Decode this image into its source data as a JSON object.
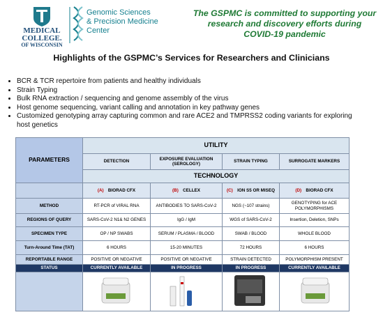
{
  "header": {
    "logo_lines": [
      "MEDICAL",
      "COLLEGE.",
      "OF WISCONSIN"
    ],
    "center_lines": [
      "Genomic Sciences",
      "& Precision Medicine",
      "Center"
    ],
    "tagline_lines": [
      "The GSPMC is committed to supporting your",
      "research and discovery efforts during",
      "COVID-19 pandemic"
    ]
  },
  "title": "Highlights of the GSPMC’s Services for Researchers and Clinicians",
  "bullets": [
    "BCR & TCR repertoire from patients and healthy individuals",
    "Strain Typing",
    "Bulk RNA extraction / sequencing and genome assembly of the virus",
    "Host genome sequencing, variant calling and annotation in key pathway genes",
    "Customized genotyping array capturing common and rare ACE2 and TMPRSS2 coding variants for exploring host genetics"
  ],
  "table": {
    "parameters_header": "PARAMETERS",
    "utility_header": "UTILITY",
    "utilities": [
      "DETECTION",
      "EXPOSURE EVALUATION (SEROLOGY)",
      "STRAIN TYPING",
      "SURROGATE MARKERS"
    ],
    "technology_header": "TECHNOLOGY",
    "technologies": [
      {
        "letter": "(A)",
        "name": "BIORAD CFX"
      },
      {
        "letter": "(B)",
        "name": "CELLEX"
      },
      {
        "letter": "(C)",
        "name": "ION S5 OR MISEQ"
      },
      {
        "letter": "(D)",
        "name": "BIORAD CFX"
      }
    ],
    "rows": [
      {
        "label": "METHOD",
        "cells": [
          "RT-PCR of VIRAL RNA",
          "ANTIBODIES TO SARS-CoV-2",
          "NGS (~107 strains)",
          "GENOTYPING for ACE POLYMORPHISMS"
        ]
      },
      {
        "label": "REGIONS OF QUERY",
        "cells": [
          "SARS-CoV-2 N1& N2 GENES",
          "IgG / IgM",
          "WGS of SARS-CoV-2",
          "Insertion, Deletion, SNPs"
        ]
      },
      {
        "label": "SPECIMEN TYPE",
        "cells": [
          "OP / NP SWABS",
          "SERUM / PLASMA / BLOOD",
          "SWAB / BLOOD",
          "WHOLE BLOOD"
        ]
      },
      {
        "label": "Turn-Around Time (TAT)",
        "cells": [
          "6 HOURS",
          "15-20 MINUTES",
          "72 HOURS",
          "6 HOURS"
        ]
      },
      {
        "label": "REPORTABLE RANGE",
        "cells": [
          "POSITIVE OR NEGATIVE",
          "POSITIVE OR NEGATIVE",
          "STRAIN DETECTED",
          "POLYMORPHISM PRESENT"
        ]
      }
    ],
    "status": {
      "label": "STATUS",
      "cells": [
        "CURRENTLY AVAILABLE",
        "IN PROGRESS",
        "IN PROGRESS",
        "CURRENTLY AVAILABLE"
      ]
    }
  }
}
